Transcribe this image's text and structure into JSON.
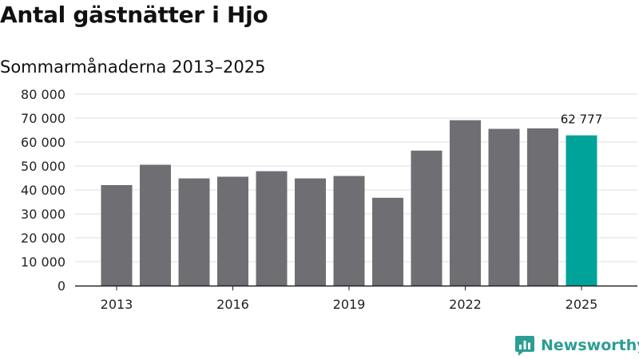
{
  "title": "Antal gästnätter i Hjo",
  "subtitle": "Sommarmånaderna 2013–2025",
  "brand": {
    "name": "Newsworthy",
    "icon": "newsworthy-logo-icon"
  },
  "colors": {
    "bar": "#6f6e73",
    "highlight": "#00a39a",
    "brand": "#2c9e93",
    "grid": "#dddddd",
    "axis": "#222222"
  },
  "chart_data": {
    "type": "bar",
    "title": "Antal gästnätter i Hjo",
    "subtitle": "Sommarmånaderna 2013–2025",
    "xlabel": "",
    "ylabel": "",
    "categories": [
      "2013",
      "2014",
      "2015",
      "2016",
      "2017",
      "2018",
      "2019",
      "2020",
      "2021",
      "2022",
      "2023",
      "2024",
      "2025"
    ],
    "values": [
      42000,
      50500,
      44800,
      45500,
      47800,
      44800,
      45800,
      36700,
      56400,
      69100,
      65500,
      65700,
      62777
    ],
    "ylim": [
      0,
      80000
    ],
    "yticks": [
      0,
      10000,
      20000,
      30000,
      40000,
      50000,
      60000,
      70000,
      80000
    ],
    "ytick_labels": [
      "0",
      "10 000",
      "20 000",
      "30 000",
      "40 000",
      "50 000",
      "60 000",
      "70 000",
      "80 000"
    ],
    "xtick_labels": [
      "2013",
      "",
      "",
      "2016",
      "",
      "",
      "2019",
      "",
      "",
      "2022",
      "",
      "",
      "2025"
    ],
    "highlight_index": 12,
    "data_labels": [
      {
        "index": 12,
        "text": "62 777"
      }
    ],
    "grid": true,
    "legend": "none"
  }
}
